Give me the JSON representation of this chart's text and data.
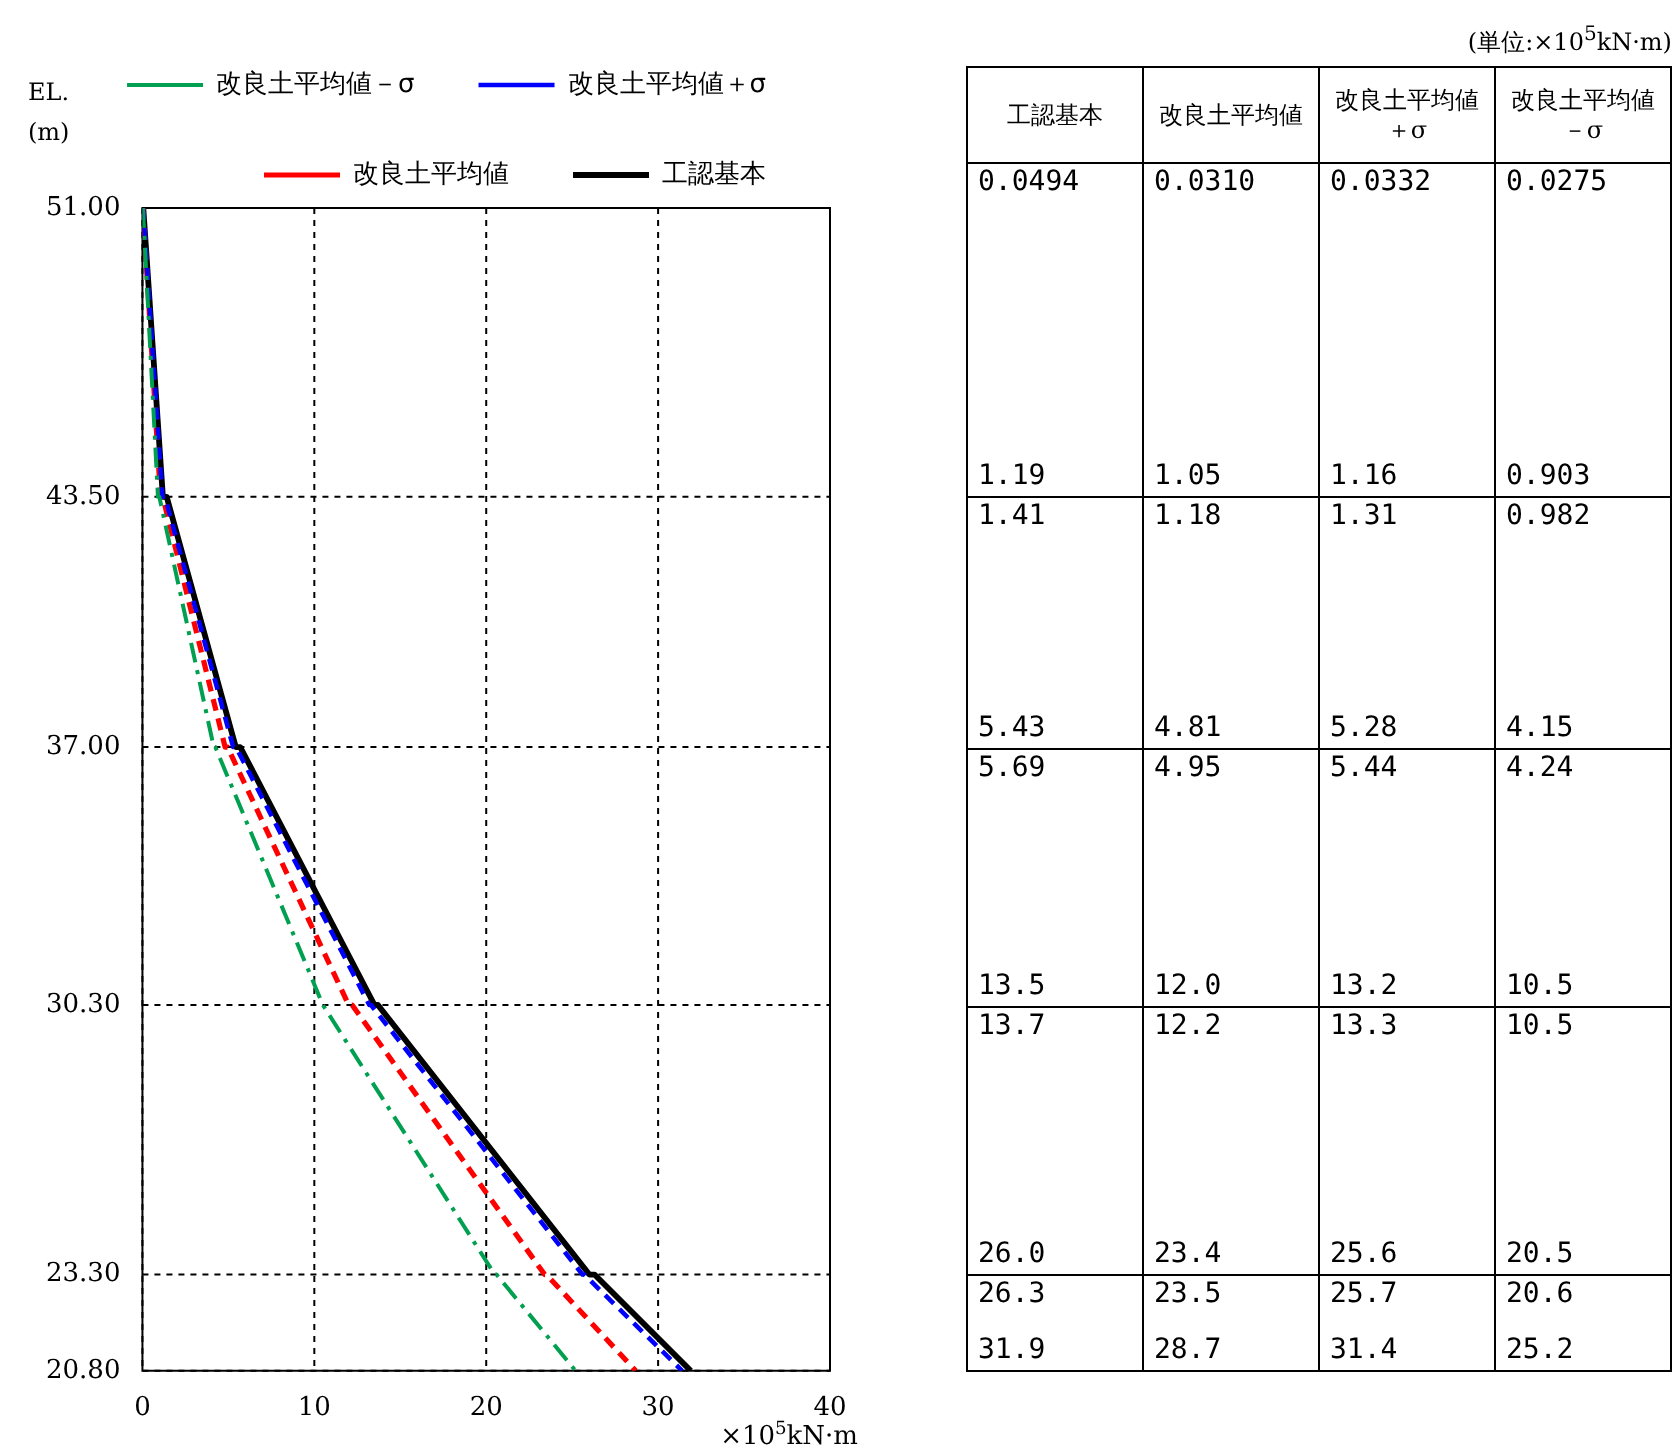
{
  "chart_data": [
    {
      "type": "line",
      "ylabel": "EL.\n(m)",
      "xlabel": "×10$^{5}$kN·m",
      "legend": "top",
      "grid": true,
      "marker": "none",
      "xlim": [
        0,
        40
      ],
      "xticks": [
        0,
        10,
        20,
        30,
        40
      ],
      "ylim": [
        20.8,
        51
      ],
      "yticks": [
        {
          "value": 51,
          "label": "51.00"
        },
        {
          "value": 43.5,
          "label": "43.50"
        },
        {
          "value": 37,
          "label": "37.00"
        },
        {
          "value": 30.3,
          "label": "30.30"
        },
        {
          "value": 23.3,
          "label": "23.30"
        },
        {
          "value": 20.8,
          "label": "20.80"
        }
      ],
      "series": [
        {
          "name": "工認基本",
          "color": "#000000",
          "line_style": "solid",
          "x": [
            0.0494,
            1.19,
            1.41,
            5.43,
            5.69,
            13.5,
            13.7,
            26.0,
            26.3,
            31.9
          ],
          "values": [
            51,
            43.5,
            43.5,
            37,
            37,
            30.3,
            30.3,
            23.3,
            23.3,
            20.8
          ]
        },
        {
          "name": "改良土平均値",
          "color": "#ff0000",
          "line_style": "dashed",
          "x": [
            0.031,
            1.05,
            1.18,
            4.81,
            4.95,
            12.0,
            12.2,
            23.4,
            23.5,
            28.7
          ],
          "values": [
            51,
            43.5,
            43.5,
            37,
            37,
            30.3,
            30.3,
            23.3,
            23.3,
            20.8
          ]
        },
        {
          "name": "改良土平均値＋σ",
          "color": "#0000ff",
          "line_style": "dashed",
          "x": [
            0.0332,
            1.16,
            1.31,
            5.28,
            5.44,
            13.2,
            13.3,
            25.6,
            25.7,
            31.4
          ],
          "values": [
            51,
            43.5,
            43.5,
            37,
            37,
            30.3,
            30.3,
            23.3,
            23.3,
            20.8
          ]
        },
        {
          "name": "改良土平均値－σ",
          "color": "#00a050",
          "line_style": "dashdot",
          "x": [
            0.0275,
            0.903,
            0.982,
            4.15,
            4.24,
            10.5,
            10.5,
            20.5,
            20.6,
            25.2
          ],
          "values": [
            51,
            43.5,
            43.5,
            37,
            37,
            30.3,
            30.3,
            23.3,
            23.3,
            20.8
          ]
        }
      ]
    },
    {
      "type": "other",
      "title": "(単位:×10$^{5}$kN·m)",
      "categories": [
        "工認基本",
        "改良土平均値",
        "改良土平均値＋σ",
        "改良土平均値－σ"
      ],
      "annotations": [
        "0.0494",
        "0.0310",
        "0.0332",
        "0.0275",
        "1.19",
        "1.05",
        "1.16",
        "0.903",
        "1.41",
        "1.18",
        "1.31",
        "0.982",
        "5.43",
        "4.81",
        "5.28",
        "4.15",
        "5.69",
        "4.95",
        "5.44",
        "4.24",
        "13.5",
        "12.0",
        "13.2",
        "10.5",
        "13.7",
        "12.2",
        "13.3",
        "10.5",
        "26.0",
        "23.4",
        "25.6",
        "20.5",
        "26.3",
        "23.5",
        "25.7",
        "20.6",
        "31.9",
        "28.7",
        "31.4",
        "25.2"
      ]
    }
  ]
}
